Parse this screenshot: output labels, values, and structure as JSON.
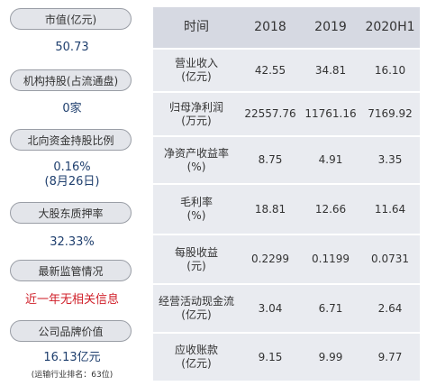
{
  "left": {
    "market_cap": {
      "label": "市值(亿元)",
      "value": "50.73"
    },
    "institution": {
      "label": "机构持股(占流通盘)",
      "value": "0家"
    },
    "northbound": {
      "label": "北向资金持股比例",
      "value": "0.16%",
      "sub": "(8月26日)"
    },
    "pledge": {
      "label": "大股东质押率",
      "value": "32.33%"
    },
    "supervision": {
      "label": "最新监管情况",
      "value": "近一年无相关信息"
    },
    "brand": {
      "label": "公司品牌价值",
      "value": "16.13亿元",
      "note": "(运输行业排名：63位)"
    }
  },
  "table": {
    "headers": [
      "时间",
      "2018",
      "2019",
      "2020H1"
    ],
    "rows": [
      {
        "l1": "营业收入",
        "l2": "(亿元)",
        "v": [
          "42.55",
          "34.81",
          "16.10"
        ]
      },
      {
        "l1": "归母净利润",
        "l2": "(万元)",
        "v": [
          "22557.76",
          "11761.16",
          "7169.92"
        ]
      },
      {
        "l1": "净资产收益率",
        "l2": "(%)",
        "v": [
          "8.75",
          "4.91",
          "3.35"
        ]
      },
      {
        "l1": "毛利率",
        "l2": "(%)",
        "v": [
          "18.81",
          "12.66",
          "11.64"
        ]
      },
      {
        "l1": "每股收益",
        "l2": "(元)",
        "v": [
          "0.2299",
          "0.1199",
          "0.0731"
        ]
      },
      {
        "l1": "经营活动现金流",
        "l2": "(亿元)",
        "v": [
          "3.04",
          "6.71",
          "2.64"
        ]
      },
      {
        "l1": "应收账款",
        "l2": "(亿元)",
        "v": [
          "9.15",
          "9.99",
          "9.77"
        ]
      }
    ]
  }
}
